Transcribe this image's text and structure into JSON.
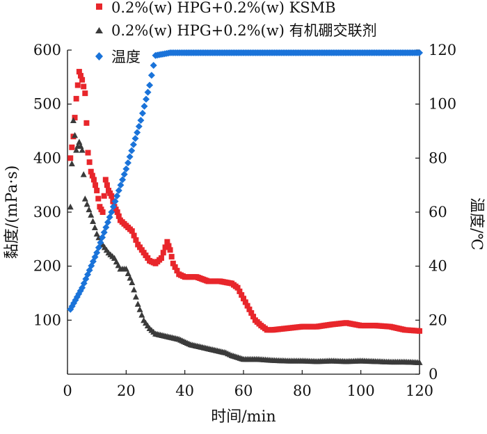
{
  "chart_data": {
    "type": "scatter",
    "title": "",
    "xlabel": "时间/min",
    "ylabel": "黏度/(mPa·s)",
    "y2label": "温度/℃",
    "xlim": [
      0,
      120
    ],
    "ylim": [
      0,
      600
    ],
    "y2lim": [
      0,
      120
    ],
    "xticks": [
      "0",
      "20",
      "40",
      "60",
      "80",
      "100",
      "120"
    ],
    "yticks": [
      "100",
      "200",
      "300",
      "400",
      "500",
      "600"
    ],
    "y2ticks": [
      "0",
      "20",
      "40",
      "60",
      "80",
      "100",
      "120"
    ],
    "grid": false,
    "legend_position": "top-left",
    "series": [
      {
        "name": "0.2%(w) HPG+0.2%(w) KSMB",
        "axis": "left",
        "color": "#e8262b",
        "marker": "square",
        "points": [
          [
            1,
            400
          ],
          [
            2,
            440
          ],
          [
            3,
            510
          ],
          [
            4,
            560
          ],
          [
            5,
            545
          ],
          [
            6,
            520
          ],
          [
            7,
            410
          ],
          [
            8,
            375
          ],
          [
            9,
            360
          ],
          [
            10,
            340
          ],
          [
            11,
            310
          ],
          [
            12,
            300
          ],
          [
            13,
            360
          ],
          [
            14,
            340
          ],
          [
            15,
            330
          ],
          [
            16,
            310
          ],
          [
            17,
            300
          ],
          [
            18,
            285
          ],
          [
            20,
            275
          ],
          [
            22,
            265
          ],
          [
            24,
            240
          ],
          [
            26,
            225
          ],
          [
            28,
            210
          ],
          [
            30,
            205
          ],
          [
            32,
            215
          ],
          [
            34,
            245
          ],
          [
            35,
            230
          ],
          [
            36,
            205
          ],
          [
            38,
            185
          ],
          [
            40,
            180
          ],
          [
            44,
            180
          ],
          [
            48,
            172
          ],
          [
            52,
            172
          ],
          [
            56,
            168
          ],
          [
            58,
            160
          ],
          [
            60,
            140
          ],
          [
            62,
            120
          ],
          [
            64,
            100
          ],
          [
            66,
            90
          ],
          [
            68,
            82
          ],
          [
            70,
            82
          ],
          [
            75,
            85
          ],
          [
            80,
            88
          ],
          [
            85,
            88
          ],
          [
            90,
            92
          ],
          [
            95,
            95
          ],
          [
            100,
            90
          ],
          [
            105,
            90
          ],
          [
            110,
            88
          ],
          [
            115,
            82
          ],
          [
            120,
            80
          ]
        ]
      },
      {
        "name": "0.2%(w) HPG+0.2%(w) 有机硼交联剂",
        "axis": "left",
        "color": "#3a3a3a",
        "marker": "triangle",
        "points": [
          [
            1,
            310
          ],
          [
            2,
            470
          ],
          [
            3,
            415
          ],
          [
            4,
            430
          ],
          [
            5,
            415
          ],
          [
            6,
            325
          ],
          [
            8,
            295
          ],
          [
            10,
            260
          ],
          [
            12,
            240
          ],
          [
            14,
            225
          ],
          [
            16,
            215
          ],
          [
            18,
            195
          ],
          [
            20,
            195
          ],
          [
            22,
            170
          ],
          [
            24,
            130
          ],
          [
            26,
            100
          ],
          [
            28,
            85
          ],
          [
            30,
            75
          ],
          [
            34,
            70
          ],
          [
            38,
            65
          ],
          [
            42,
            55
          ],
          [
            46,
            50
          ],
          [
            50,
            45
          ],
          [
            54,
            40
          ],
          [
            56,
            35
          ],
          [
            60,
            28
          ],
          [
            65,
            28
          ],
          [
            70,
            26
          ],
          [
            75,
            25
          ],
          [
            80,
            25
          ],
          [
            85,
            24
          ],
          [
            90,
            25
          ],
          [
            95,
            24
          ],
          [
            100,
            25
          ],
          [
            105,
            24
          ],
          [
            110,
            23
          ],
          [
            115,
            23
          ],
          [
            120,
            22
          ]
        ]
      },
      {
        "name": "温度",
        "axis": "right",
        "color": "#1a73d9",
        "marker": "diamond",
        "points": [
          [
            1,
            24
          ],
          [
            5,
            32
          ],
          [
            10,
            45
          ],
          [
            15,
            60
          ],
          [
            20,
            76
          ],
          [
            25,
            94
          ],
          [
            28,
            107
          ],
          [
            30,
            118
          ],
          [
            35,
            119
          ],
          [
            40,
            119
          ],
          [
            50,
            119
          ],
          [
            60,
            119
          ],
          [
            70,
            119
          ],
          [
            80,
            119
          ],
          [
            90,
            119
          ],
          [
            100,
            119
          ],
          [
            110,
            119
          ],
          [
            120,
            119
          ]
        ]
      }
    ]
  }
}
